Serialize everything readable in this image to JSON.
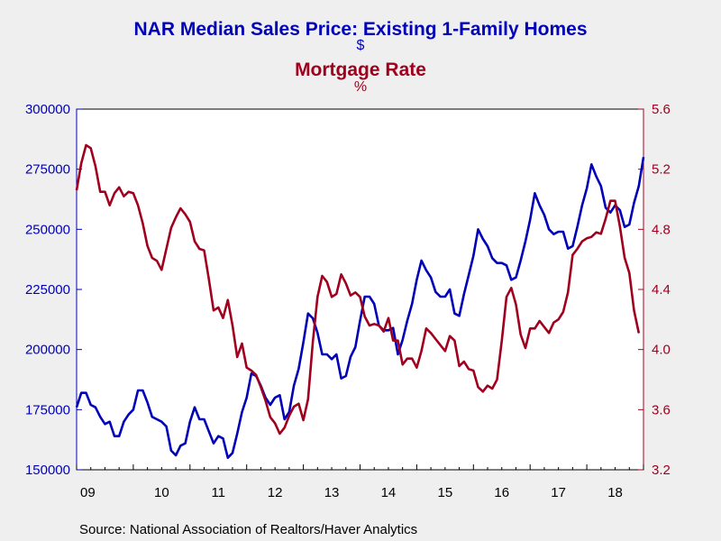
{
  "chart_data": {
    "type": "line",
    "title_lines": [
      {
        "text": "NAR Median Sales Price: Existing 1-Family Homes",
        "color": "#0000b8"
      },
      {
        "text": "$",
        "color": "#0000b8"
      },
      {
        "text": "Mortgage Rate",
        "color": "#a0001e"
      },
      {
        "text": "%",
        "color": "#a0001e"
      }
    ],
    "source": "Source:  National Association of Realtors/Haver Analytics",
    "colors": {
      "background": "#efefef",
      "plot_background": "#ffffff",
      "left_axis": "#0000b8",
      "right_axis": "#a0001e",
      "x_axis": "#000000"
    },
    "x_ticks": [
      "09",
      "10",
      "11",
      "12",
      "13",
      "14",
      "15",
      "16",
      "17",
      "18"
    ],
    "x_range": [
      2009.0,
      2019.0
    ],
    "left_axis": {
      "ylim": [
        150000,
        300000
      ],
      "ticks": [
        150000,
        175000,
        200000,
        225000,
        250000,
        275000,
        300000
      ],
      "tick_labels": [
        "150000",
        "175000",
        "200000",
        "225000",
        "250000",
        "275000",
        "300000"
      ]
    },
    "right_axis": {
      "ylim": [
        3.2,
        5.6
      ],
      "ticks": [
        3.2,
        3.6,
        4.0,
        4.4,
        4.8,
        5.2,
        5.6
      ],
      "tick_labels": [
        "3.2",
        "3.6",
        "4.0",
        "4.4",
        "4.8",
        "5.2",
        "5.6"
      ]
    },
    "grid": false,
    "legend": "none",
    "series": [
      {
        "axis": "left",
        "color": "#0000b8",
        "points": [
          [
            2009.0,
            176000
          ],
          [
            2009.083,
            182000
          ],
          [
            2009.167,
            182000
          ],
          [
            2009.25,
            177000
          ],
          [
            2009.333,
            176000
          ],
          [
            2009.417,
            172000
          ],
          [
            2009.5,
            169000
          ],
          [
            2009.583,
            170000
          ],
          [
            2009.667,
            164000
          ],
          [
            2009.75,
            164000
          ],
          [
            2009.833,
            170000
          ],
          [
            2009.917,
            173000
          ],
          [
            2010.0,
            175000
          ],
          [
            2010.083,
            183000
          ],
          [
            2010.167,
            183000
          ],
          [
            2010.25,
            178000
          ],
          [
            2010.333,
            172000
          ],
          [
            2010.417,
            171000
          ],
          [
            2010.5,
            170000
          ],
          [
            2010.583,
            168000
          ],
          [
            2010.667,
            158000
          ],
          [
            2010.75,
            156000
          ],
          [
            2010.833,
            160000
          ],
          [
            2010.917,
            161000
          ],
          [
            2011.0,
            170000
          ],
          [
            2011.083,
            176000
          ],
          [
            2011.167,
            171000
          ],
          [
            2011.25,
            171000
          ],
          [
            2011.333,
            166000
          ],
          [
            2011.417,
            161000
          ],
          [
            2011.5,
            164000
          ],
          [
            2011.583,
            163000
          ],
          [
            2011.667,
            155000
          ],
          [
            2011.75,
            157000
          ],
          [
            2011.833,
            165000
          ],
          [
            2011.917,
            174000
          ],
          [
            2012.0,
            180000
          ],
          [
            2012.083,
            190000
          ],
          [
            2012.167,
            189000
          ],
          [
            2012.25,
            185000
          ],
          [
            2012.333,
            180000
          ],
          [
            2012.417,
            177000
          ],
          [
            2012.5,
            180000
          ],
          [
            2012.583,
            181000
          ],
          [
            2012.667,
            171000
          ],
          [
            2012.75,
            174000
          ],
          [
            2012.833,
            185000
          ],
          [
            2012.917,
            192000
          ],
          [
            2013.0,
            203000
          ],
          [
            2013.083,
            215000
          ],
          [
            2013.167,
            213000
          ],
          [
            2013.25,
            207000
          ],
          [
            2013.333,
            198000
          ],
          [
            2013.417,
            198000
          ],
          [
            2013.5,
            196000
          ],
          [
            2013.583,
            198000
          ],
          [
            2013.667,
            188000
          ],
          [
            2013.75,
            189000
          ],
          [
            2013.833,
            197000
          ],
          [
            2013.917,
            201000
          ],
          [
            2014.0,
            212000
          ],
          [
            2014.083,
            222000
          ],
          [
            2014.167,
            222000
          ],
          [
            2014.25,
            219000
          ],
          [
            2014.333,
            210000
          ],
          [
            2014.417,
            208000
          ],
          [
            2014.5,
            208000
          ],
          [
            2014.583,
            209000
          ],
          [
            2014.667,
            198000
          ],
          [
            2014.75,
            204000
          ],
          [
            2014.833,
            212000
          ],
          [
            2014.917,
            219000
          ],
          [
            2015.0,
            229000
          ],
          [
            2015.083,
            237000
          ],
          [
            2015.167,
            233000
          ],
          [
            2015.25,
            230000
          ],
          [
            2015.333,
            224000
          ],
          [
            2015.417,
            222000
          ],
          [
            2015.5,
            222000
          ],
          [
            2015.583,
            225000
          ],
          [
            2015.667,
            215000
          ],
          [
            2015.75,
            214000
          ],
          [
            2015.833,
            223000
          ],
          [
            2015.917,
            231000
          ],
          [
            2016.0,
            239000
          ],
          [
            2016.083,
            250000
          ],
          [
            2016.167,
            246000
          ],
          [
            2016.25,
            243000
          ],
          [
            2016.333,
            238000
          ],
          [
            2016.417,
            236000
          ],
          [
            2016.5,
            236000
          ],
          [
            2016.583,
            235000
          ],
          [
            2016.667,
            229000
          ],
          [
            2016.75,
            230000
          ],
          [
            2016.833,
            237000
          ],
          [
            2016.917,
            245000
          ],
          [
            2017.0,
            254000
          ],
          [
            2017.083,
            265000
          ],
          [
            2017.167,
            260000
          ],
          [
            2017.25,
            256000
          ],
          [
            2017.333,
            250000
          ],
          [
            2017.417,
            248000
          ],
          [
            2017.5,
            249000
          ],
          [
            2017.583,
            249000
          ],
          [
            2017.667,
            242000
          ],
          [
            2017.75,
            243000
          ],
          [
            2017.833,
            251000
          ],
          [
            2017.917,
            260000
          ],
          [
            2018.0,
            267000
          ],
          [
            2018.083,
            277000
          ],
          [
            2018.167,
            272000
          ],
          [
            2018.25,
            268000
          ],
          [
            2018.333,
            259000
          ],
          [
            2018.417,
            257000
          ],
          [
            2018.5,
            260000
          ],
          [
            2018.583,
            258000
          ],
          [
            2018.667,
            251000
          ],
          [
            2018.75,
            252000
          ],
          [
            2018.833,
            261000
          ],
          [
            2018.917,
            268000
          ],
          [
            2019.0,
            280000
          ]
        ]
      },
      {
        "axis": "right",
        "color": "#a0001e",
        "points": [
          [
            2009.0,
            5.06
          ],
          [
            2009.083,
            5.24
          ],
          [
            2009.167,
            5.36
          ],
          [
            2009.25,
            5.34
          ],
          [
            2009.333,
            5.22
          ],
          [
            2009.417,
            5.05
          ],
          [
            2009.5,
            5.05
          ],
          [
            2009.583,
            4.96
          ],
          [
            2009.667,
            5.04
          ],
          [
            2009.75,
            5.08
          ],
          [
            2009.833,
            5.02
          ],
          [
            2009.917,
            5.05
          ],
          [
            2010.0,
            5.04
          ],
          [
            2010.083,
            4.96
          ],
          [
            2010.167,
            4.84
          ],
          [
            2010.25,
            4.69
          ],
          [
            2010.333,
            4.61
          ],
          [
            2010.417,
            4.59
          ],
          [
            2010.5,
            4.53
          ],
          [
            2010.583,
            4.67
          ],
          [
            2010.667,
            4.81
          ],
          [
            2010.75,
            4.88
          ],
          [
            2010.833,
            4.94
          ],
          [
            2010.917,
            4.9
          ],
          [
            2011.0,
            4.85
          ],
          [
            2011.083,
            4.72
          ],
          [
            2011.167,
            4.67
          ],
          [
            2011.25,
            4.66
          ],
          [
            2011.333,
            4.47
          ],
          [
            2011.417,
            4.26
          ],
          [
            2011.5,
            4.28
          ],
          [
            2011.583,
            4.21
          ],
          [
            2011.667,
            4.33
          ],
          [
            2011.75,
            4.16
          ],
          [
            2011.833,
            3.95
          ],
          [
            2011.917,
            4.04
          ],
          [
            2012.0,
            3.88
          ],
          [
            2012.083,
            3.86
          ],
          [
            2012.167,
            3.83
          ],
          [
            2012.25,
            3.75
          ],
          [
            2012.333,
            3.66
          ],
          [
            2012.417,
            3.55
          ],
          [
            2012.5,
            3.51
          ],
          [
            2012.583,
            3.44
          ],
          [
            2012.667,
            3.48
          ],
          [
            2012.75,
            3.56
          ],
          [
            2012.833,
            3.62
          ],
          [
            2012.917,
            3.64
          ],
          [
            2013.0,
            3.53
          ],
          [
            2013.083,
            3.67
          ],
          [
            2013.167,
            4.05
          ],
          [
            2013.25,
            4.35
          ],
          [
            2013.333,
            4.49
          ],
          [
            2013.417,
            4.45
          ],
          [
            2013.5,
            4.35
          ],
          [
            2013.583,
            4.37
          ],
          [
            2013.667,
            4.5
          ],
          [
            2013.75,
            4.44
          ],
          [
            2013.833,
            4.36
          ],
          [
            2013.917,
            4.38
          ],
          [
            2014.0,
            4.35
          ],
          [
            2014.083,
            4.22
          ],
          [
            2014.167,
            4.16
          ],
          [
            2014.25,
            4.17
          ],
          [
            2014.333,
            4.16
          ],
          [
            2014.417,
            4.12
          ],
          [
            2014.5,
            4.21
          ],
          [
            2014.583,
            4.06
          ],
          [
            2014.667,
            4.06
          ],
          [
            2014.75,
            3.9
          ],
          [
            2014.833,
            3.94
          ],
          [
            2014.917,
            3.94
          ],
          [
            2015.0,
            3.88
          ],
          [
            2015.083,
            3.99
          ],
          [
            2015.167,
            4.14
          ],
          [
            2015.25,
            4.11
          ],
          [
            2015.333,
            4.07
          ],
          [
            2015.417,
            4.03
          ],
          [
            2015.5,
            3.99
          ],
          [
            2015.583,
            4.09
          ],
          [
            2015.667,
            4.06
          ],
          [
            2015.75,
            3.89
          ],
          [
            2015.833,
            3.92
          ],
          [
            2015.917,
            3.87
          ],
          [
            2016.0,
            3.86
          ],
          [
            2016.083,
            3.75
          ],
          [
            2016.167,
            3.72
          ],
          [
            2016.25,
            3.76
          ],
          [
            2016.333,
            3.74
          ],
          [
            2016.417,
            3.8
          ],
          [
            2016.5,
            4.06
          ],
          [
            2016.583,
            4.35
          ],
          [
            2016.667,
            4.41
          ],
          [
            2016.75,
            4.3
          ],
          [
            2016.833,
            4.1
          ],
          [
            2016.917,
            4.01
          ],
          [
            2017.0,
            4.14
          ],
          [
            2017.083,
            4.14
          ],
          [
            2017.167,
            4.19
          ],
          [
            2017.25,
            4.15
          ],
          [
            2017.333,
            4.11
          ],
          [
            2017.417,
            4.18
          ],
          [
            2017.5,
            4.2
          ],
          [
            2017.583,
            4.25
          ],
          [
            2017.667,
            4.38
          ],
          [
            2017.75,
            4.63
          ],
          [
            2017.833,
            4.67
          ],
          [
            2017.917,
            4.72
          ],
          [
            2018.0,
            4.74
          ],
          [
            2018.083,
            4.75
          ],
          [
            2018.167,
            4.78
          ],
          [
            2018.25,
            4.77
          ],
          [
            2018.333,
            4.87
          ],
          [
            2018.417,
            4.99
          ],
          [
            2018.5,
            4.99
          ],
          [
            2018.583,
            4.82
          ],
          [
            2018.667,
            4.61
          ],
          [
            2018.75,
            4.51
          ],
          [
            2018.833,
            4.26
          ],
          [
            2018.917,
            4.11
          ]
        ]
      }
    ]
  }
}
